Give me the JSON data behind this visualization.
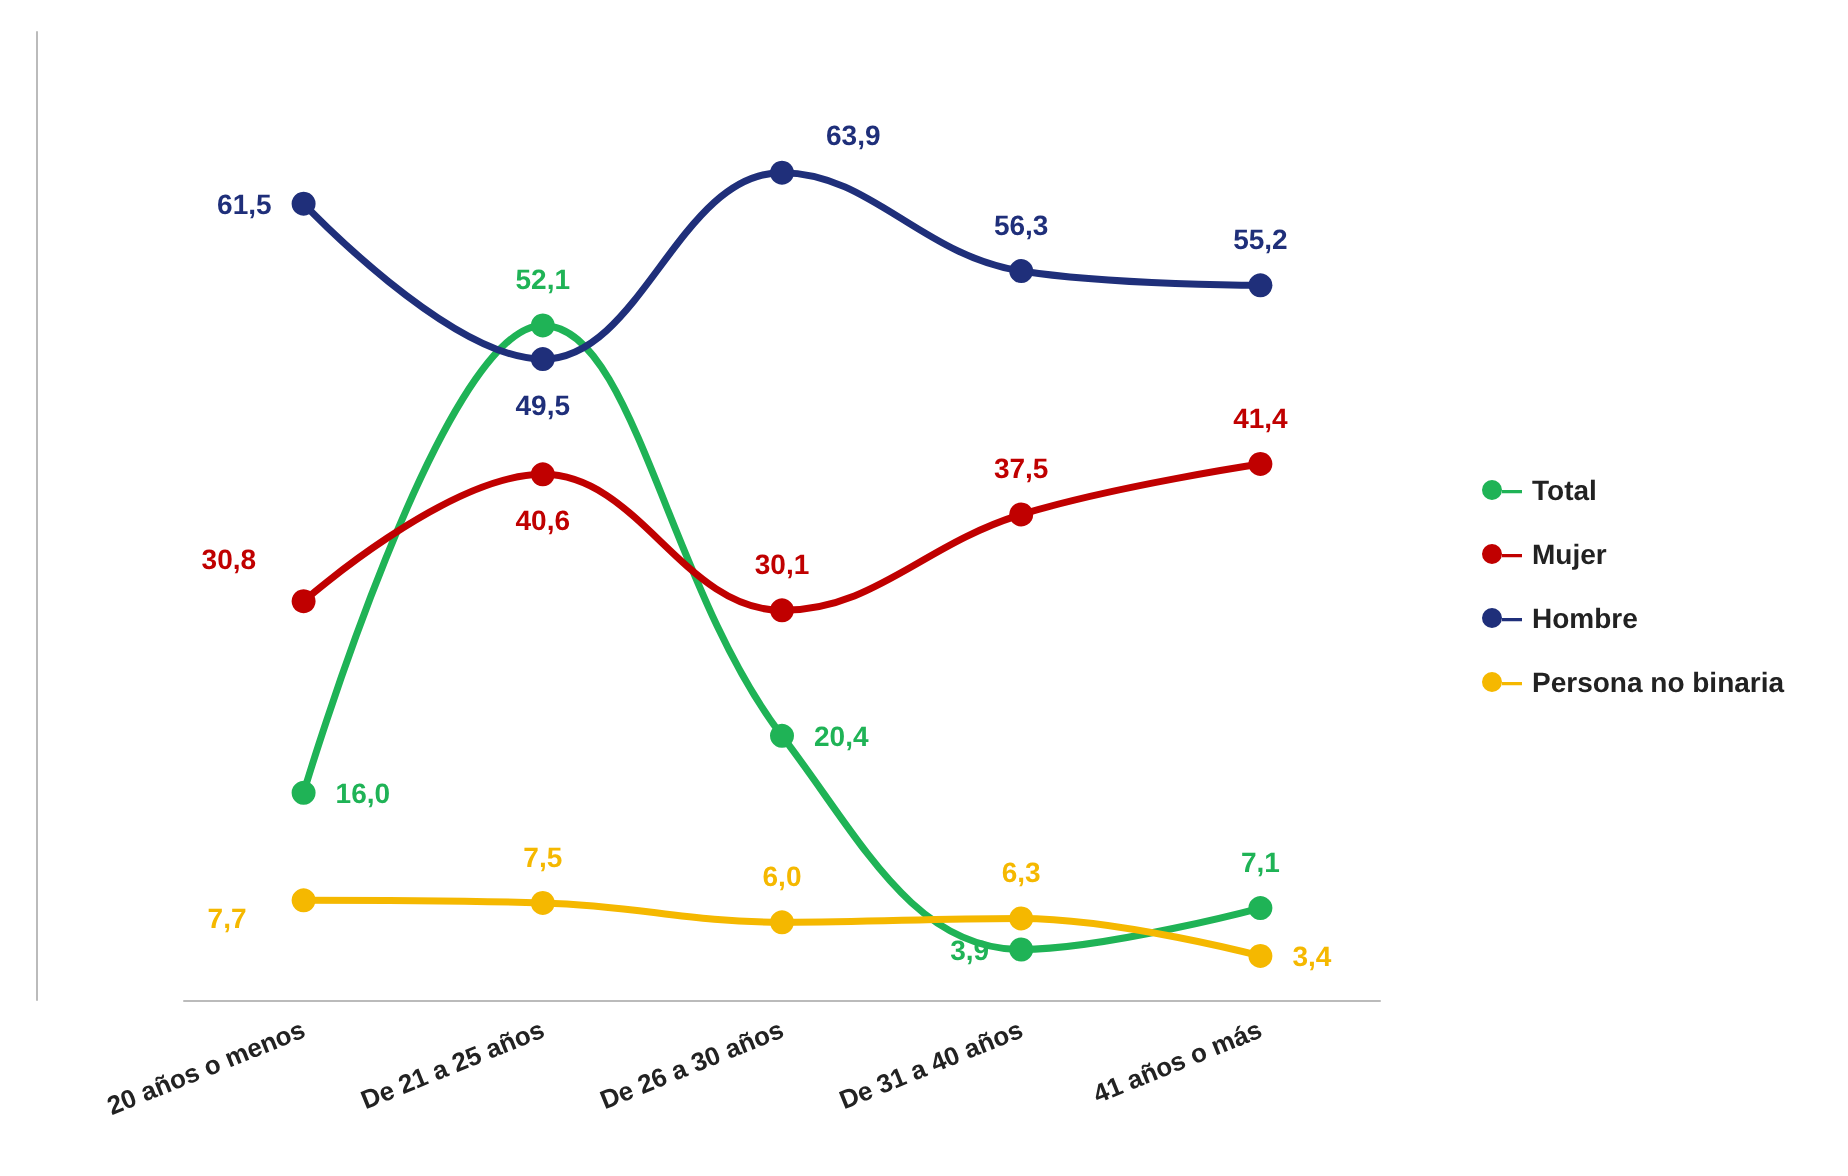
{
  "chart_data": {
    "type": "line",
    "categories": [
      "20 años o menos",
      "De 21 a 25 años",
      "De 26 a 30 años",
      "De 31 a 40 años",
      "41 años o más"
    ],
    "tick_labels": "x",
    "marker": "circle",
    "legend": "right",
    "grid": false,
    "series": [
      {
        "name": "Total",
        "color": "#1fb356",
        "values": [
          16.0,
          52.1,
          20.4,
          3.9,
          7.1
        ],
        "value_labels": [
          "16,0",
          "52,1",
          "20,4",
          "3,9",
          "7,1"
        ]
      },
      {
        "name": "Mujer",
        "color": "#c00000",
        "values": [
          30.8,
          40.6,
          30.1,
          37.5,
          41.4
        ],
        "value_labels": [
          "30,8",
          "40,6",
          "30,1",
          "37,5",
          "41,4"
        ]
      },
      {
        "name": "Hombre",
        "color": "#1f2f7a",
        "values": [
          61.5,
          49.5,
          63.9,
          56.3,
          55.2
        ],
        "value_labels": [
          "61,5",
          "49,5",
          "63,9",
          "56,3",
          "55,2"
        ]
      },
      {
        "name": "Persona no binaria",
        "color": "#f5b800",
        "values": [
          7.7,
          7.5,
          6.0,
          6.3,
          3.4
        ],
        "value_labels": [
          "7,7",
          "7,5",
          "6,0",
          "6,3",
          "3,4"
        ]
      }
    ]
  }
}
